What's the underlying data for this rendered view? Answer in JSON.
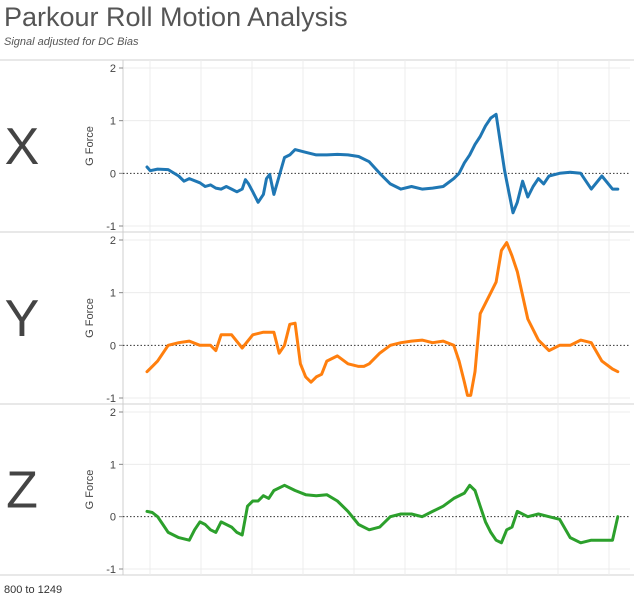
{
  "header": {
    "title": "Parkour Roll Motion Analysis",
    "subtitle": "Signal adjusted for DC Bias"
  },
  "footer": {
    "range_label": "800 to 1249"
  },
  "colors": {
    "x": "#1f77b4",
    "y": "#ff7f0e",
    "z": "#2ca02c",
    "grid": "#ececec",
    "zero_line": "#333333"
  },
  "chart_data": [
    {
      "type": "line",
      "panel_label": "X",
      "ylabel": "G Force",
      "ylim": [
        -1,
        2
      ],
      "xlim": [
        800,
        1249
      ],
      "yticks": [
        -1,
        0,
        1,
        2
      ],
      "zero_line": "dotted",
      "grid": true,
      "series": [
        {
          "x": [
            800,
            803,
            810,
            820,
            830,
            835,
            840,
            850,
            855,
            860,
            865,
            870,
            875,
            880,
            885,
            890,
            893,
            896,
            900,
            905,
            910,
            913,
            916,
            920,
            925,
            930,
            935,
            940,
            950,
            960,
            970,
            980,
            990,
            1000,
            1010,
            1020,
            1030,
            1040,
            1050,
            1060,
            1070,
            1080,
            1090,
            1095,
            1100,
            1105,
            1110,
            1115,
            1120,
            1125,
            1130,
            1135,
            1138,
            1142,
            1146,
            1150,
            1155,
            1160,
            1165,
            1170,
            1175,
            1180,
            1190,
            1200,
            1210,
            1220,
            1230,
            1240,
            1245
          ],
          "y": [
            0.12,
            0.05,
            0.08,
            0.07,
            -0.05,
            -0.15,
            -0.1,
            -0.18,
            -0.25,
            -0.22,
            -0.28,
            -0.3,
            -0.25,
            -0.3,
            -0.35,
            -0.3,
            -0.12,
            -0.2,
            -0.35,
            -0.55,
            -0.4,
            -0.1,
            -0.02,
            -0.4,
            -0.05,
            0.3,
            0.35,
            0.45,
            0.4,
            0.35,
            0.35,
            0.36,
            0.35,
            0.32,
            0.22,
            0.0,
            -0.2,
            -0.3,
            -0.25,
            -0.3,
            -0.28,
            -0.25,
            -0.1,
            0.0,
            0.2,
            0.35,
            0.55,
            0.7,
            0.9,
            1.05,
            1.12,
            0.45,
            0.05,
            -0.35,
            -0.75,
            -0.55,
            -0.15,
            -0.45,
            -0.25,
            -0.1,
            -0.2,
            -0.05,
            0.0,
            0.02,
            0.0,
            -0.3,
            -0.05,
            -0.3,
            -0.3
          ]
        }
      ]
    },
    {
      "type": "line",
      "panel_label": "Y",
      "ylabel": "G Force",
      "ylim": [
        -1,
        2
      ],
      "xlim": [
        800,
        1249
      ],
      "yticks": [
        -1,
        0,
        1,
        2
      ],
      "zero_line": "dotted",
      "grid": true,
      "series": [
        {
          "x": [
            800,
            805,
            810,
            815,
            820,
            830,
            840,
            850,
            860,
            865,
            870,
            880,
            890,
            900,
            910,
            920,
            925,
            930,
            935,
            940,
            945,
            950,
            955,
            960,
            965,
            970,
            980,
            990,
            1000,
            1005,
            1010,
            1020,
            1030,
            1040,
            1050,
            1060,
            1070,
            1080,
            1090,
            1095,
            1100,
            1103,
            1106,
            1110,
            1115,
            1120,
            1125,
            1130,
            1135,
            1140,
            1145,
            1150,
            1160,
            1170,
            1180,
            1190,
            1200,
            1210,
            1220,
            1230,
            1240,
            1245
          ],
          "y": [
            -0.5,
            -0.4,
            -0.3,
            -0.15,
            0.0,
            0.05,
            0.08,
            0.0,
            0.0,
            -0.1,
            0.2,
            0.2,
            -0.05,
            0.2,
            0.25,
            0.25,
            -0.15,
            0.0,
            0.4,
            0.42,
            -0.35,
            -0.6,
            -0.7,
            -0.6,
            -0.55,
            -0.3,
            -0.2,
            -0.35,
            -0.4,
            -0.4,
            -0.35,
            -0.15,
            0.0,
            0.05,
            0.08,
            0.1,
            0.05,
            0.08,
            0.0,
            -0.3,
            -0.7,
            -0.95,
            -0.95,
            -0.5,
            0.6,
            0.8,
            1.0,
            1.2,
            1.8,
            1.95,
            1.7,
            1.4,
            0.5,
            0.1,
            -0.1,
            0.0,
            0.0,
            0.1,
            0.05,
            -0.3,
            -0.45,
            -0.5
          ]
        }
      ]
    },
    {
      "type": "line",
      "panel_label": "Z",
      "ylabel": "G Force",
      "ylim": [
        -1,
        2
      ],
      "xlim": [
        800,
        1249
      ],
      "yticks": [
        -1,
        0,
        1,
        2
      ],
      "zero_line": "dotted",
      "grid": true,
      "series": [
        {
          "x": [
            800,
            805,
            810,
            815,
            820,
            830,
            840,
            845,
            850,
            855,
            860,
            865,
            870,
            880,
            885,
            890,
            895,
            900,
            905,
            910,
            915,
            920,
            930,
            940,
            950,
            960,
            970,
            980,
            990,
            1000,
            1010,
            1020,
            1030,
            1040,
            1050,
            1060,
            1070,
            1080,
            1090,
            1100,
            1105,
            1110,
            1115,
            1120,
            1125,
            1130,
            1135,
            1140,
            1145,
            1150,
            1160,
            1170,
            1180,
            1190,
            1200,
            1210,
            1220,
            1230,
            1240,
            1245
          ],
          "y": [
            0.1,
            0.08,
            0.0,
            -0.15,
            -0.3,
            -0.4,
            -0.45,
            -0.25,
            -0.1,
            -0.15,
            -0.25,
            -0.3,
            -0.1,
            -0.2,
            -0.3,
            -0.35,
            0.2,
            0.3,
            0.3,
            0.4,
            0.35,
            0.5,
            0.6,
            0.5,
            0.42,
            0.4,
            0.42,
            0.3,
            0.1,
            -0.15,
            -0.25,
            -0.2,
            0.0,
            0.05,
            0.05,
            0.0,
            0.1,
            0.2,
            0.35,
            0.45,
            0.6,
            0.5,
            0.2,
            -0.1,
            -0.3,
            -0.45,
            -0.5,
            -0.25,
            -0.2,
            0.1,
            0.0,
            0.05,
            0.0,
            -0.05,
            -0.4,
            -0.5,
            -0.45,
            -0.45,
            -0.45,
            0.0
          ]
        }
      ]
    }
  ]
}
